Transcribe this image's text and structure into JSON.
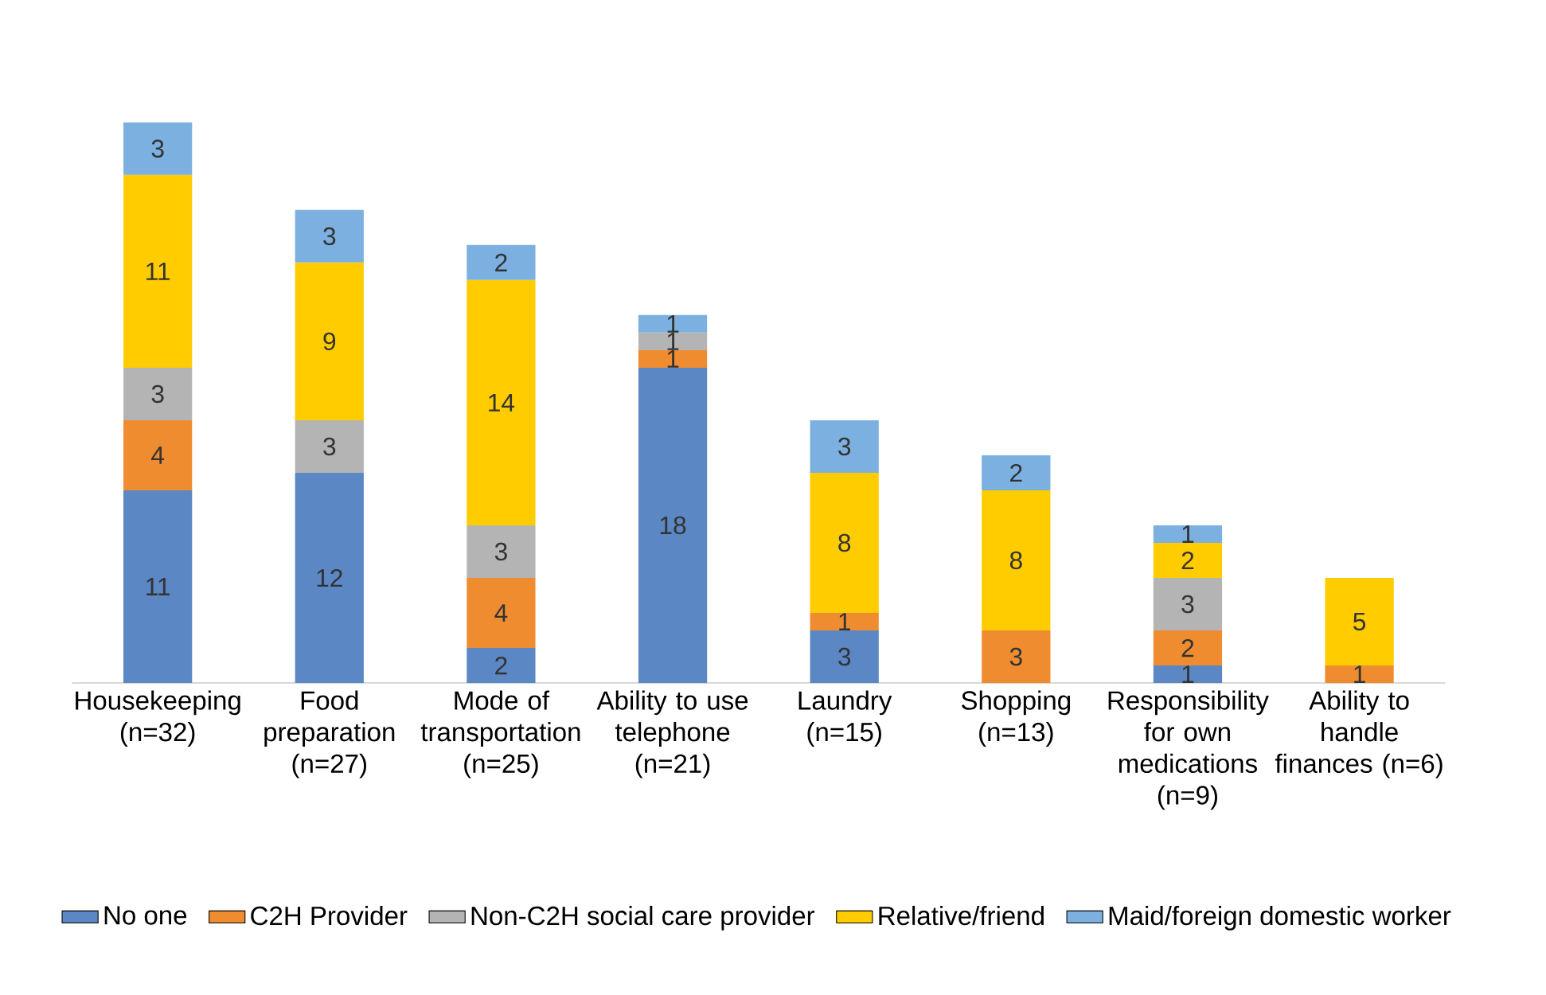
{
  "chart_data": {
    "type": "bar",
    "stacked": true,
    "data_labels": true,
    "legend": "bottom",
    "categories": [
      "Housekeeping (n=32)",
      "Food preparation (n=27)",
      "Mode of transportation (n=25)",
      "Ability to use telephone (n=21)",
      "Laundry (n=15)",
      "Shopping (n=13)",
      "Responsibility for own medications (n=9)",
      "Ability to handle finances (n=6)"
    ],
    "series": [
      {
        "name": "No one",
        "color": "#5b87c5",
        "values": [
          11,
          12,
          2,
          18,
          3,
          null,
          1,
          null
        ]
      },
      {
        "name": "C2H Provider",
        "color": "#f08c30",
        "values": [
          4,
          null,
          4,
          1,
          1,
          3,
          2,
          1
        ]
      },
      {
        "name": "Non-C2H social care provider",
        "color": "#b4b4b4",
        "values": [
          3,
          3,
          3,
          1,
          null,
          null,
          3,
          null
        ]
      },
      {
        "name": "Relative/friend",
        "color": "#ffcc00",
        "values": [
          11,
          9,
          14,
          null,
          8,
          8,
          2,
          5
        ]
      },
      {
        "name": "Maid/foreign domestic worker",
        "color": "#7cb0e0",
        "values": [
          3,
          3,
          2,
          1,
          3,
          2,
          1,
          null
        ]
      }
    ]
  }
}
